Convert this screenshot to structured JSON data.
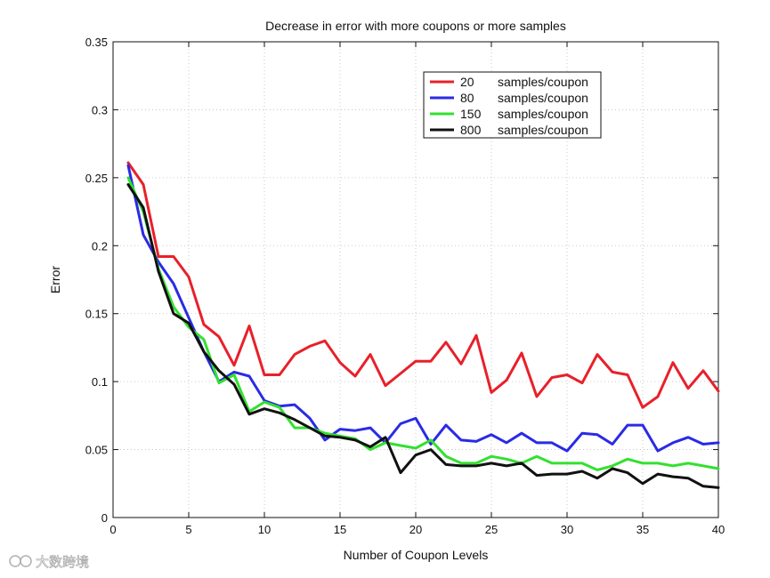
{
  "watermark": "大数跨境",
  "chart_data": {
    "type": "line",
    "title": "Decrease in error with more coupons or more samples",
    "xlabel": "Number of Coupon Levels",
    "ylabel": "Error",
    "xlim": [
      0,
      40
    ],
    "ylim": [
      0,
      0.35
    ],
    "x_ticks": [
      0,
      5,
      10,
      15,
      20,
      25,
      30,
      35,
      40
    ],
    "x_tick_labels": [
      "0",
      "5",
      "10",
      "15",
      "20",
      "25",
      "30",
      "35",
      "40"
    ],
    "y_ticks": [
      0,
      0.05,
      0.1,
      0.15,
      0.2,
      0.25,
      0.3,
      0.35
    ],
    "y_tick_labels": [
      "0",
      "0.05",
      "0.1",
      "0.15",
      "0.2",
      "0.25",
      "0.3",
      "0.35"
    ],
    "grid": true,
    "grid_style": "dotted",
    "legend_position": "top-right",
    "x": [
      1,
      2,
      3,
      4,
      5,
      6,
      7,
      8,
      9,
      10,
      11,
      12,
      13,
      14,
      15,
      16,
      17,
      18,
      19,
      20,
      21,
      22,
      23,
      24,
      25,
      26,
      27,
      28,
      29,
      30,
      31,
      32,
      33,
      34,
      35,
      36,
      37,
      38,
      39,
      40
    ],
    "series": [
      {
        "name": "20",
        "name_suffix": "samples/coupon",
        "color": "#e8202a",
        "values": [
          0.261,
          0.245,
          0.192,
          0.192,
          0.177,
          0.142,
          0.133,
          0.112,
          0.141,
          0.105,
          0.105,
          0.12,
          0.126,
          0.13,
          0.114,
          0.104,
          0.12,
          0.097,
          0.106,
          0.115,
          0.115,
          0.129,
          0.113,
          0.134,
          0.092,
          0.101,
          0.121,
          0.089,
          0.103,
          0.105,
          0.099,
          0.12,
          0.107,
          0.105,
          0.081,
          0.089,
          0.114,
          0.095,
          0.108,
          0.093
        ]
      },
      {
        "name": "80",
        "name_suffix": "samples/coupon",
        "color": "#2a2ae6",
        "values": [
          0.259,
          0.208,
          0.188,
          0.172,
          0.147,
          0.122,
          0.1,
          0.107,
          0.104,
          0.086,
          0.082,
          0.083,
          0.073,
          0.057,
          0.065,
          0.064,
          0.066,
          0.055,
          0.069,
          0.073,
          0.054,
          0.068,
          0.057,
          0.056,
          0.061,
          0.055,
          0.062,
          0.055,
          0.055,
          0.049,
          0.062,
          0.061,
          0.054,
          0.068,
          0.068,
          0.049,
          0.055,
          0.059,
          0.054,
          0.055
        ]
      },
      {
        "name": "150",
        "name_suffix": "samples/coupon",
        "color": "#33e030",
        "values": [
          0.25,
          0.225,
          0.183,
          0.155,
          0.14,
          0.131,
          0.099,
          0.105,
          0.078,
          0.085,
          0.081,
          0.066,
          0.066,
          0.062,
          0.06,
          0.058,
          0.05,
          0.055,
          0.053,
          0.051,
          0.057,
          0.045,
          0.04,
          0.04,
          0.045,
          0.043,
          0.04,
          0.045,
          0.04,
          0.04,
          0.04,
          0.035,
          0.038,
          0.043,
          0.04,
          0.04,
          0.038,
          0.04,
          0.038,
          0.036
        ]
      },
      {
        "name": "800",
        "name_suffix": "samples/coupon",
        "color": "#111111",
        "values": [
          0.245,
          0.228,
          0.181,
          0.15,
          0.143,
          0.122,
          0.108,
          0.098,
          0.076,
          0.08,
          0.077,
          0.072,
          0.066,
          0.06,
          0.059,
          0.057,
          0.052,
          0.059,
          0.033,
          0.046,
          0.05,
          0.039,
          0.038,
          0.038,
          0.04,
          0.038,
          0.04,
          0.031,
          0.032,
          0.032,
          0.034,
          0.029,
          0.036,
          0.033,
          0.025,
          0.032,
          0.03,
          0.029,
          0.023,
          0.022
        ]
      }
    ]
  }
}
